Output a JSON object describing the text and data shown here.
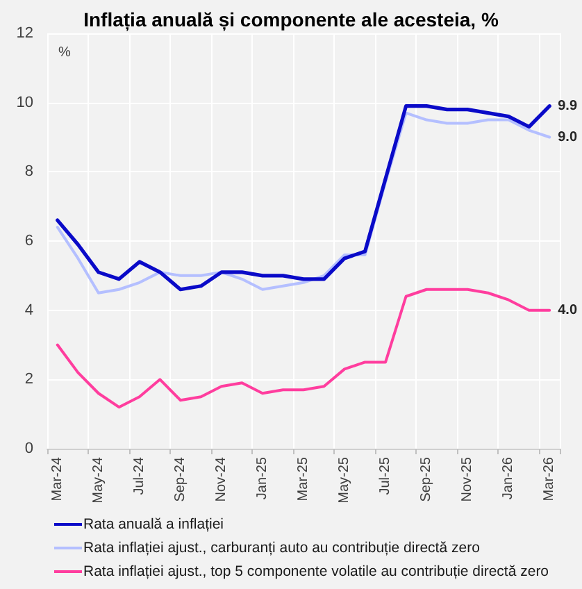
{
  "chart_data": {
    "type": "line",
    "title": "Inflația anuală și componente ale acesteia, %",
    "ylabel": "%",
    "categories": [
      "Mar-24",
      null,
      "May-24",
      null,
      "Jul-24",
      null,
      "Sep-24",
      null,
      "Nov-24",
      null,
      "Jan-25",
      null,
      "Mar-25",
      null,
      "May-25",
      null,
      "Jul-25",
      null,
      "Sep-25",
      null,
      "Nov-25",
      null,
      "Jan-26",
      null,
      "Mar-26"
    ],
    "series": [
      {
        "name": "Rata anuală a inflației",
        "color": "#0a0ac8",
        "values": [
          6.6,
          5.9,
          5.1,
          4.9,
          5.4,
          5.1,
          4.6,
          4.7,
          5.1,
          5.1,
          5.0,
          5.0,
          4.9,
          4.9,
          5.5,
          5.7,
          7.8,
          9.9,
          9.9,
          9.8,
          9.8,
          9.7,
          9.6,
          9.3,
          9.9
        ],
        "value_labels": [
          null,
          null,
          null,
          null,
          null,
          null,
          null,
          null,
          null,
          null,
          null,
          null,
          null,
          null,
          null,
          null,
          null,
          null,
          null,
          null,
          null,
          null,
          null,
          null,
          "9.9"
        ]
      },
      {
        "name": "Rata inflației ajust., carburanți auto au contribuție directă zero",
        "color": "#b4bfff",
        "values": [
          6.4,
          5.5,
          4.5,
          4.6,
          4.8,
          5.1,
          5.0,
          5.0,
          5.1,
          4.9,
          4.6,
          4.7,
          4.8,
          5.0,
          5.6,
          5.6,
          7.7,
          9.7,
          9.5,
          9.4,
          9.4,
          9.5,
          9.5,
          9.2,
          9.0
        ],
        "value_labels": [
          null,
          null,
          null,
          null,
          null,
          null,
          null,
          null,
          null,
          null,
          null,
          null,
          null,
          null,
          null,
          null,
          null,
          null,
          null,
          null,
          null,
          null,
          null,
          null,
          "9.0"
        ]
      },
      {
        "name": "Rata inflației ajust., top 5 componente volatile au contribuție directă zero",
        "color": "#ff3d9e",
        "values": [
          3.0,
          2.2,
          1.6,
          1.2,
          1.5,
          2.0,
          1.4,
          1.5,
          1.8,
          1.9,
          1.6,
          1.7,
          1.7,
          1.8,
          2.3,
          2.5,
          2.5,
          4.4,
          4.6,
          4.6,
          4.6,
          4.5,
          4.3,
          4.0,
          4.0
        ],
        "value_labels": [
          null,
          null,
          null,
          null,
          null,
          null,
          null,
          null,
          null,
          null,
          null,
          null,
          null,
          null,
          null,
          null,
          null,
          null,
          null,
          null,
          null,
          null,
          null,
          null,
          "4.0"
        ]
      }
    ],
    "ylim": [
      0,
      12
    ],
    "yticks": [
      0,
      2,
      4,
      6,
      8,
      10,
      12
    ],
    "grid": true,
    "legend": "bottom",
    "marker": "none"
  }
}
